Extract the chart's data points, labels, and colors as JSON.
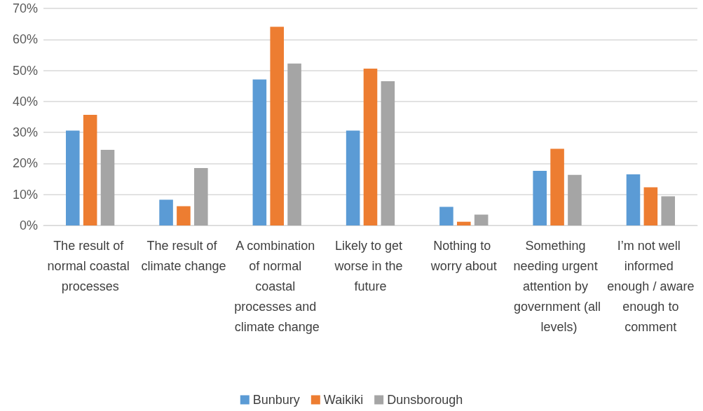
{
  "chart_data": {
    "type": "bar",
    "categories": [
      "The result of normal coastal processes",
      "The result of climate change",
      "A combination of normal coastal processes and climate change",
      "Likely to get worse in the future",
      "Nothing to worry about",
      "Something needing urgent attention by government (all levels)",
      "I’m not well informed enough / aware enough to comment"
    ],
    "series": [
      {
        "name": "Bunbury",
        "color": "#5b9bd5",
        "values": [
          30.6,
          8.3,
          47.1,
          30.6,
          6.0,
          17.6,
          16.5
        ]
      },
      {
        "name": "Waikiki",
        "color": "#ed7d31",
        "values": [
          35.7,
          6.2,
          64.1,
          50.6,
          1.2,
          24.7,
          12.3
        ]
      },
      {
        "name": "Dunsborough",
        "color": "#a5a5a5",
        "values": [
          24.4,
          18.5,
          52.2,
          46.5,
          3.5,
          16.3,
          9.4
        ]
      }
    ],
    "ylim": [
      0,
      70
    ],
    "yticks": [
      {
        "value": 0,
        "label": "0%"
      },
      {
        "value": 10,
        "label": "10%"
      },
      {
        "value": 20,
        "label": "20%"
      },
      {
        "value": 30,
        "label": "30%"
      },
      {
        "value": 40,
        "label": "40%"
      },
      {
        "value": 50,
        "label": "50%"
      },
      {
        "value": 60,
        "label": "60%"
      },
      {
        "value": 70,
        "label": "70%"
      }
    ],
    "grid": "y",
    "legend": "bottom"
  }
}
